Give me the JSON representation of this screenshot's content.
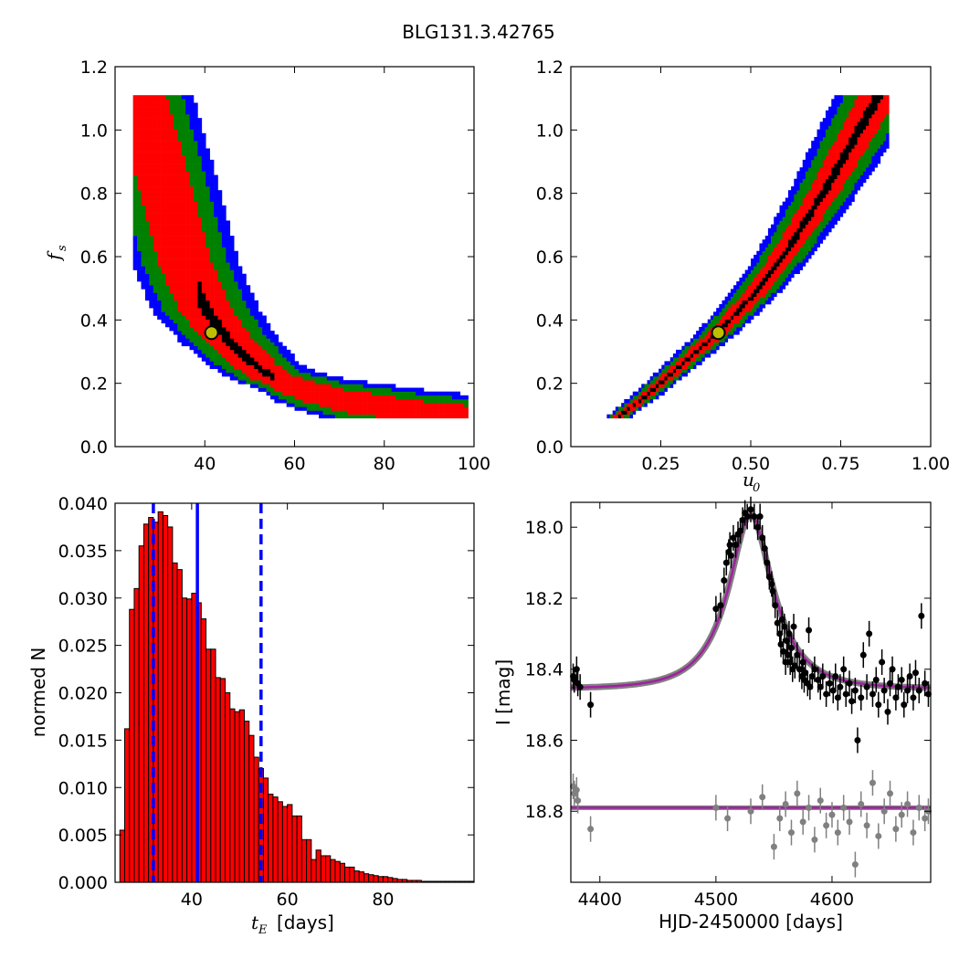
{
  "figure": {
    "title": "BLG131.3.42765"
  },
  "colors": {
    "blue": "#0000ff",
    "green": "#008000",
    "red": "#ff0000",
    "black": "#000000",
    "marker": "#bfbf00",
    "hist": "#ff0000",
    "model": "#a020a0",
    "model_shadow": "#808080",
    "data": "#000000",
    "resid": "#808080"
  },
  "panels": {
    "fs_te": {
      "ylabel": "f",
      "ylabel_sub": "s",
      "xticks": [
        "40",
        "60",
        "80",
        "100"
      ],
      "yticks": [
        "0.0",
        "0.2",
        "0.4",
        "0.6",
        "0.8",
        "1.0",
        "1.2"
      ]
    },
    "fs_u0": {
      "xlabel": "u",
      "xlabel_sub": "0",
      "xticks": [
        "0.25",
        "0.50",
        "0.75",
        "1.00"
      ],
      "yticks": [
        "0.0",
        "0.2",
        "0.4",
        "0.6",
        "0.8",
        "1.0",
        "1.2"
      ]
    },
    "hist": {
      "xlabel_main": "t",
      "xlabel_sub": "E",
      "xlabel_unit": "[days]",
      "ylabel": "normed N",
      "xticks": [
        "40",
        "60",
        "80"
      ],
      "yticks": [
        "0.000",
        "0.005",
        "0.010",
        "0.015",
        "0.020",
        "0.025",
        "0.030",
        "0.035",
        "0.040"
      ]
    },
    "lc": {
      "xlabel": "HJD-2450000 [days]",
      "ylabel": "I [mag]",
      "xticks": [
        "4400",
        "4500",
        "4600"
      ],
      "yticks": [
        "18.0",
        "18.2",
        "18.4",
        "18.6",
        "18.8"
      ]
    }
  },
  "chart_data": [
    {
      "type": "heatmap",
      "panel": "fs_te",
      "title": "",
      "xlabel": "",
      "ylabel": "f_s",
      "xlim": [
        20,
        100
      ],
      "ylim": [
        0.0,
        1.2
      ],
      "levels": [
        "blue",
        "green",
        "red",
        "black"
      ],
      "ridge": {
        "x": [
          25,
          30,
          35,
          40,
          45,
          50,
          55,
          60,
          65,
          70,
          80,
          90,
          98
        ],
        "y": [
          1.1,
          0.85,
          0.58,
          0.42,
          0.33,
          0.26,
          0.21,
          0.18,
          0.16,
          0.14,
          0.12,
          0.1,
          0.09
        ]
      },
      "best_fit": {
        "x": 41.5,
        "y": 0.36
      }
    },
    {
      "type": "heatmap",
      "panel": "fs_u0",
      "title": "",
      "xlabel": "u_0",
      "ylabel": "",
      "xlim": [
        0.0,
        1.0
      ],
      "ylim": [
        0.0,
        1.2
      ],
      "levels": [
        "blue",
        "green",
        "red",
        "black"
      ],
      "ridge": {
        "x": [
          0.13,
          0.2,
          0.25,
          0.3,
          0.35,
          0.4,
          0.45,
          0.5,
          0.55,
          0.6,
          0.65,
          0.7,
          0.75,
          0.8,
          0.85
        ],
        "y": [
          0.09,
          0.15,
          0.2,
          0.25,
          0.3,
          0.35,
          0.41,
          0.47,
          0.54,
          0.62,
          0.71,
          0.8,
          0.9,
          1.0,
          1.1
        ]
      },
      "best_fit": {
        "x": 0.41,
        "y": 0.36
      }
    },
    {
      "type": "bar",
      "panel": "hist",
      "title": "",
      "xlabel": "t_E [days]",
      "ylabel": "normed N",
      "xlim": [
        24,
        99
      ],
      "ylim": [
        0.0,
        0.04
      ],
      "bin_start": 25,
      "bin_width": 1,
      "values": [
        0.0055,
        0.0162,
        0.0288,
        0.031,
        0.0355,
        0.0378,
        0.0385,
        0.038,
        0.0391,
        0.0387,
        0.0375,
        0.0337,
        0.033,
        0.03,
        0.0299,
        0.0305,
        0.0295,
        0.0278,
        0.0246,
        0.0246,
        0.0216,
        0.0215,
        0.02,
        0.0183,
        0.018,
        0.0182,
        0.017,
        0.0155,
        0.0132,
        0.012,
        0.011,
        0.0093,
        0.009,
        0.0085,
        0.008,
        0.0082,
        0.007,
        0.007,
        0.0045,
        0.0045,
        0.0024,
        0.0034,
        0.0028,
        0.0028,
        0.0024,
        0.0022,
        0.002,
        0.0016,
        0.0016,
        0.0012,
        0.0011,
        0.0009,
        0.0008,
        0.0007,
        0.0006,
        0.0006,
        0.0005,
        0.0004,
        0.0003,
        0.0003,
        0.0002,
        0.0002,
        0.0002,
        0.0001,
        0.0001,
        0.0001,
        0.0001,
        0.0001,
        0.0001,
        0.0001,
        0.0001,
        0.0001,
        0.0001,
        0.0001
      ],
      "vlines": {
        "median": 41.2,
        "lower": 32.0,
        "upper": 54.5
      }
    },
    {
      "type": "scatter",
      "panel": "lc",
      "title": "",
      "xlabel": "HJD-2450000 [days]",
      "ylabel": "I [mag]",
      "xlim": [
        4375,
        4685
      ],
      "ylim": [
        19.0,
        17.93
      ],
      "y_inverted": true,
      "model": {
        "t0": 4530,
        "tE": 41.2,
        "u0": 0.41,
        "fs": 0.36,
        "baseline": 18.455
      },
      "residual_baseline": 18.79,
      "series": [
        {
          "name": "",
          "x": [
            4377,
            4378,
            4380,
            4381,
            4383,
            4392,
            4500,
            4504,
            4507,
            4509,
            4511,
            4512,
            4513,
            4515,
            4517,
            4519,
            4521,
            4523,
            4525,
            4527,
            4530,
            4533,
            4536,
            4538,
            4540,
            4542,
            4544,
            4546,
            4548,
            4549,
            4551,
            4553,
            4555,
            4556,
            4557,
            4558,
            4559,
            4560,
            4561,
            4562,
            4563,
            4564,
            4565,
            4566,
            4567,
            4568,
            4570,
            4572,
            4574,
            4575,
            4576,
            4577,
            4579,
            4580,
            4581,
            4583,
            4585,
            4588,
            4590,
            4592,
            4595,
            4598,
            4601,
            4603,
            4605,
            4607,
            4610,
            4612,
            4615,
            4617,
            4620,
            4622,
            4625,
            4627,
            4630,
            4632,
            4635,
            4638,
            4640,
            4643,
            4645,
            4648,
            4650,
            4652,
            4655,
            4657,
            4660,
            4662,
            4665,
            4667,
            4670,
            4672,
            4675,
            4677,
            4680,
            4683
          ],
          "y": [
            18.42,
            18.43,
            18.4,
            18.44,
            18.45,
            18.5,
            18.23,
            18.22,
            18.15,
            18.1,
            18.07,
            18.05,
            18.08,
            18.03,
            18.05,
            18.02,
            18.01,
            17.98,
            17.96,
            17.97,
            17.95,
            17.97,
            18.0,
            17.97,
            18.03,
            18.06,
            18.1,
            18.14,
            18.16,
            18.18,
            18.22,
            18.27,
            18.3,
            18.33,
            18.26,
            18.35,
            18.28,
            18.38,
            18.32,
            18.36,
            18.3,
            18.38,
            18.34,
            18.4,
            18.28,
            18.39,
            18.36,
            18.4,
            18.42,
            18.38,
            18.43,
            18.41,
            18.44,
            18.29,
            18.45,
            18.42,
            18.4,
            18.43,
            18.45,
            18.42,
            18.47,
            18.44,
            18.46,
            18.42,
            18.48,
            18.45,
            18.4,
            18.47,
            18.44,
            18.49,
            18.46,
            18.6,
            18.48,
            18.36,
            18.45,
            18.3,
            18.47,
            18.43,
            18.5,
            18.38,
            18.46,
            18.52,
            18.44,
            18.4,
            18.48,
            18.45,
            18.43,
            18.5,
            18.46,
            18.42,
            18.48,
            18.41,
            18.46,
            18.25,
            18.44,
            18.47
          ]
        },
        {
          "name": "",
          "x": [
            4377,
            4378,
            4380,
            4381,
            4392,
            4500,
            4510,
            4530,
            4540,
            4550,
            4555,
            4560,
            4565,
            4570,
            4575,
            4580,
            4585,
            4590,
            4595,
            4600,
            4605,
            4610,
            4615,
            4620,
            4625,
            4630,
            4635,
            4640,
            4645,
            4650,
            4655,
            4660,
            4665,
            4670,
            4675,
            4680,
            4683
          ],
          "y": [
            18.73,
            18.75,
            18.74,
            18.77,
            18.85,
            18.79,
            18.82,
            18.8,
            18.76,
            18.9,
            18.82,
            18.78,
            18.86,
            18.75,
            18.83,
            18.79,
            18.88,
            18.77,
            18.84,
            18.81,
            18.86,
            18.79,
            18.83,
            18.95,
            18.78,
            18.84,
            18.72,
            18.87,
            18.8,
            18.75,
            18.85,
            18.81,
            18.78,
            18.86,
            18.79,
            18.82,
            18.8
          ]
        }
      ]
    }
  ]
}
